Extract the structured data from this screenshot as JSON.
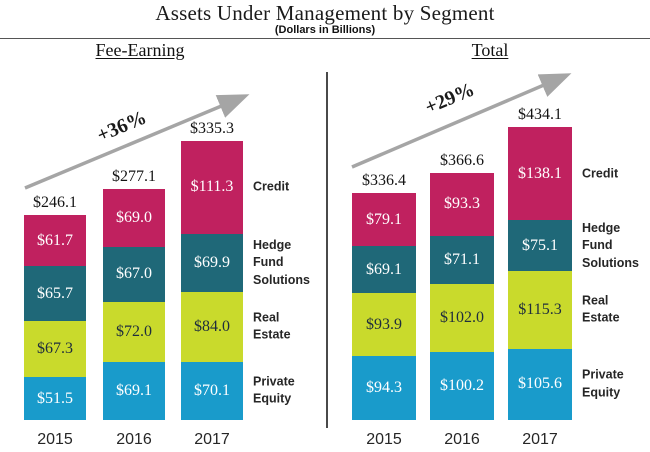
{
  "title": "Assets Under Management by Segment",
  "subtitle": "(Dollars in Billions)",
  "colors": {
    "credit": "#c0215f",
    "hedge_fund_solutions": "#1f6878",
    "real_estate": "#c9da2c",
    "private_equity": "#199bcb",
    "arrow": "#a5a5a5",
    "value_text_light": "#ffffff",
    "value_text_dark": "#1f2d3d"
  },
  "chart_data": [
    {
      "type": "bar",
      "stacked": true,
      "group_title": "Fee-Earning",
      "growth_annotation": "+36%",
      "value_prefix": "$",
      "categories": [
        "2015",
        "2016",
        "2017"
      ],
      "series": [
        {
          "name": "Credit",
          "key": "credit",
          "values": [
            61.7,
            69.0,
            111.3
          ]
        },
        {
          "name": "Hedge Fund Solutions",
          "key": "hedge_fund_solutions",
          "values": [
            65.7,
            67.0,
            69.9
          ]
        },
        {
          "name": "Real Estate",
          "key": "real_estate",
          "values": [
            67.3,
            72.0,
            84.0
          ]
        },
        {
          "name": "Private Equity",
          "key": "private_equity",
          "values": [
            51.5,
            69.1,
            70.1
          ]
        }
      ],
      "totals": [
        246.1,
        277.1,
        335.3
      ],
      "legend_position": "right",
      "grid": false
    },
    {
      "type": "bar",
      "stacked": true,
      "group_title": "Total",
      "growth_annotation": "+29%",
      "value_prefix": "$",
      "categories": [
        "2015",
        "2016",
        "2017"
      ],
      "series": [
        {
          "name": "Credit",
          "key": "credit",
          "values": [
            79.1,
            93.3,
            138.1
          ]
        },
        {
          "name": "Hedge Fund Solutions",
          "key": "hedge_fund_solutions",
          "values": [
            69.1,
            71.1,
            75.1
          ]
        },
        {
          "name": "Real Estate",
          "key": "real_estate",
          "values": [
            93.9,
            102.0,
            115.3
          ]
        },
        {
          "name": "Private Equity",
          "key": "private_equity",
          "values": [
            94.3,
            100.2,
            105.6
          ]
        }
      ],
      "totals": [
        336.4,
        366.6,
        434.1
      ],
      "legend_position": "right",
      "grid": false
    }
  ]
}
